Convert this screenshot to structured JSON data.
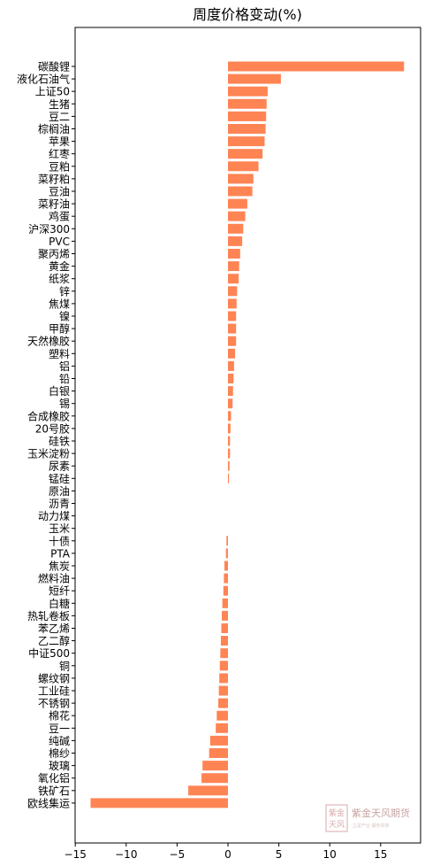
{
  "chart_data": {
    "type": "bar",
    "orientation": "horizontal",
    "title": "周度价格变动(%)",
    "xlabel": "",
    "ylabel": "",
    "xlim": [
      -15,
      19
    ],
    "xticks": [
      -15,
      -10,
      -5,
      0,
      5,
      10,
      15
    ],
    "grid": false,
    "bar_color": "#ff8454",
    "categories": [
      "碳酸锂",
      "液化石油气",
      "上证50",
      "生猪",
      "豆二",
      "棕榈油",
      "苹果",
      "红枣",
      "豆粕",
      "菜籽粕",
      "豆油",
      "菜籽油",
      "鸡蛋",
      "沪深300",
      "PVC",
      "聚丙烯",
      "黄金",
      "纸浆",
      "锌",
      "焦煤",
      "镍",
      "甲醇",
      "天然橡胶",
      "塑料",
      "铝",
      "铅",
      "白银",
      "锡",
      "合成橡胶",
      "20号胶",
      "硅铁",
      "玉米淀粉",
      "尿素",
      "锰硅",
      "原油",
      "沥青",
      "动力煤",
      "玉米",
      "十债",
      "PTA",
      "焦炭",
      "燃料油",
      "短纤",
      "白糖",
      "热轧卷板",
      "苯乙烯",
      "乙二醇",
      "中证500",
      "铜",
      "螺纹钢",
      "工业硅",
      "不锈钢",
      "棉花",
      "豆一",
      "纯碱",
      "棉纱",
      "玻璃",
      "氧化铝",
      "铁矿石",
      "欧线集运"
    ],
    "values": [
      17.3,
      5.2,
      3.9,
      3.8,
      3.75,
      3.7,
      3.6,
      3.4,
      3.0,
      2.5,
      2.4,
      1.9,
      1.7,
      1.5,
      1.4,
      1.2,
      1.1,
      1.05,
      0.9,
      0.85,
      0.8,
      0.8,
      0.8,
      0.7,
      0.6,
      0.55,
      0.5,
      0.45,
      0.3,
      0.25,
      0.2,
      0.2,
      0.15,
      0.1,
      0.0,
      0.0,
      0.0,
      0.0,
      -0.15,
      -0.2,
      -0.35,
      -0.4,
      -0.45,
      -0.55,
      -0.6,
      -0.65,
      -0.7,
      -0.75,
      -0.8,
      -0.85,
      -0.9,
      -0.95,
      -1.1,
      -1.2,
      -1.75,
      -1.85,
      -2.5,
      -2.6,
      -3.9,
      -13.5
    ]
  },
  "watermark": {
    "text": "紫金天风期货",
    "subtext": "立足产业 服务实体",
    "seal_chars": [
      "紫金",
      "天风"
    ],
    "color": "#c9a3a3"
  }
}
